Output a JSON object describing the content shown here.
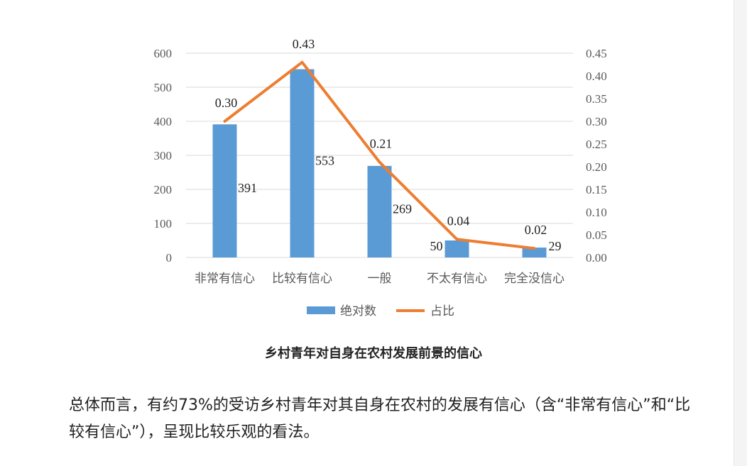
{
  "chart_data": {
    "type": "bar+line",
    "title": "乡村青年对自身在农村发展前景的信心",
    "categories": [
      "非常有信心",
      "比较有信心",
      "一般",
      "不太有信心",
      "完全没信心"
    ],
    "series": [
      {
        "name": "绝对数",
        "type": "bar",
        "axis": "left",
        "color": "#5B9BD5",
        "values": [
          391,
          553,
          269,
          50,
          29
        ]
      },
      {
        "name": "占比",
        "type": "line",
        "axis": "right",
        "color": "#ED7D31",
        "values": [
          0.3,
          0.43,
          0.21,
          0.04,
          0.02
        ]
      }
    ],
    "bar_labels": [
      "391",
      "553",
      "269",
      "50",
      "29"
    ],
    "line_labels": [
      "0.30",
      "0.43",
      "0.21",
      "0.04",
      "0.02"
    ],
    "left_axis": {
      "min": 0,
      "max": 600,
      "ticks": [
        "0",
        "100",
        "200",
        "300",
        "400",
        "500",
        "600"
      ]
    },
    "right_axis": {
      "min": 0,
      "max": 0.45,
      "ticks": [
        "0.00",
        "0.05",
        "0.10",
        "0.15",
        "0.20",
        "0.25",
        "0.30",
        "0.35",
        "0.40",
        "0.45"
      ]
    },
    "grid": true,
    "legend_position": "bottom"
  },
  "caption": "乡村青年对自身在农村发展前景的信心",
  "paragraph": "总体而言，有约73%的受访乡村青年对其自身在农村的发展有信心（含“非常有信心”和“比较有信心”），呈现比较乐观的看法。"
}
